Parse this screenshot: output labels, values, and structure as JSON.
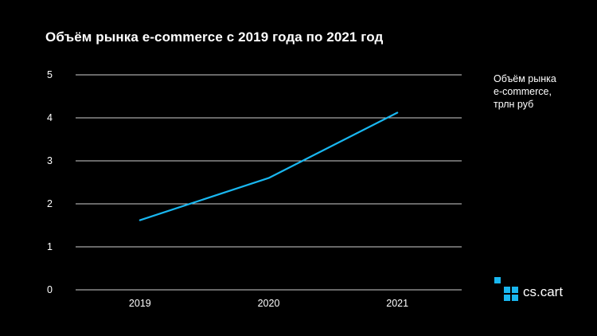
{
  "colors": {
    "background": "#000000",
    "line": "#19b7f0",
    "grid": "#cfcfcf",
    "text": "#ffffff",
    "logo": "#19b7f0"
  },
  "chart_data": {
    "type": "line",
    "title": "Объём рынка e-commerce с 2019 года по 2021 год",
    "categories": [
      "2019",
      "2020",
      "2021"
    ],
    "series": [
      {
        "name": "Объём рынка e-commerce, трлн руб",
        "values": [
          1.62,
          2.6,
          4.12
        ]
      }
    ],
    "legend_lines": [
      "Объём рынка",
      "e-commerce,",
      "трлн руб"
    ],
    "yticks": [
      "0",
      "1",
      "2",
      "3",
      "4",
      "5"
    ],
    "ylim": [
      0,
      5
    ],
    "grid": true,
    "legend_position": "right"
  },
  "logo": {
    "text": "cs.cart",
    "icon": "cs-cart-squares-icon"
  }
}
